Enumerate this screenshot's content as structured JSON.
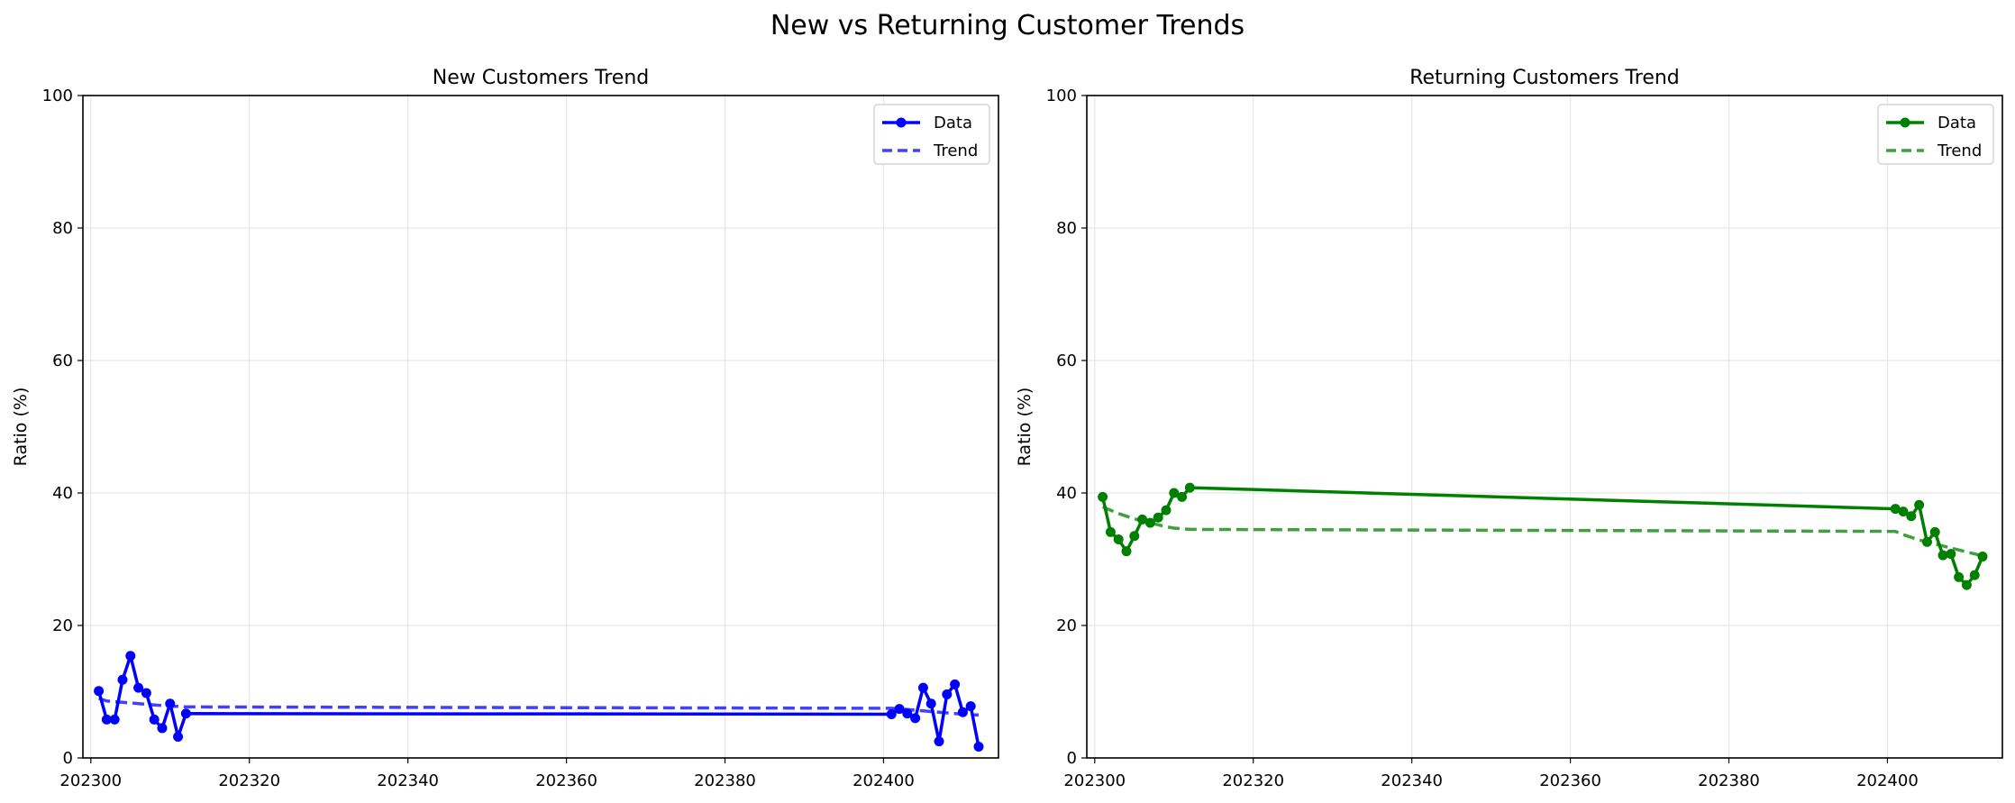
{
  "suptitle": "New vs Returning Customer Trends",
  "colors": {
    "new": "#0000ff",
    "returning": "#008000"
  },
  "chart_data": [
    {
      "type": "line",
      "title": "New Customers Trend",
      "xlabel": "",
      "ylabel": "Ratio (%)",
      "xlim": [
        202299,
        202414.5
      ],
      "ylim": [
        0,
        100
      ],
      "xticks": [
        202300,
        202320,
        202340,
        202360,
        202380,
        202400
      ],
      "yticks": [
        0,
        20,
        40,
        60,
        80,
        100
      ],
      "grid": true,
      "legend": "top-right",
      "series": [
        {
          "name": "Data",
          "style": "solid-marker",
          "color": "#0000ff",
          "x": [
            202301,
            202302,
            202303,
            202304,
            202305,
            202306,
            202307,
            202308,
            202309,
            202310,
            202311,
            202312,
            202401,
            202402,
            202403,
            202404,
            202405,
            202406,
            202407,
            202408,
            202409,
            202410,
            202411,
            202412
          ],
          "y": [
            10.1,
            5.8,
            5.8,
            11.8,
            15.4,
            10.6,
            9.8,
            5.8,
            4.5,
            8.2,
            3.2,
            6.7,
            6.6,
            7.4,
            6.7,
            6.0,
            10.6,
            8.2,
            2.5,
            9.6,
            11.1,
            6.9,
            7.8,
            1.7
          ]
        },
        {
          "name": "Trend",
          "style": "dashed",
          "color": "#0000ff",
          "x": [
            202301,
            202302,
            202303,
            202304,
            202305,
            202306,
            202307,
            202308,
            202309,
            202310,
            202311,
            202312,
            202401,
            202402,
            202403,
            202404,
            202405,
            202406,
            202407,
            202408,
            202409,
            202410,
            202411,
            202412
          ],
          "y": [
            9.0,
            8.6,
            8.5,
            8.4,
            8.3,
            8.2,
            8.1,
            8.0,
            7.9,
            7.8,
            7.8,
            7.7,
            7.5,
            7.4,
            7.3,
            7.2,
            7.1,
            7.0,
            6.9,
            6.8,
            6.7,
            6.6,
            6.5,
            6.5
          ]
        }
      ]
    },
    {
      "type": "line",
      "title": "Returning Customers Trend",
      "xlabel": "",
      "ylabel": "Ratio (%)",
      "xlim": [
        202299,
        202414.5
      ],
      "ylim": [
        0,
        100
      ],
      "xticks": [
        202300,
        202320,
        202340,
        202360,
        202380,
        202400
      ],
      "yticks": [
        0,
        20,
        40,
        60,
        80,
        100
      ],
      "grid": true,
      "legend": "top-right",
      "series": [
        {
          "name": "Data",
          "style": "solid-marker",
          "color": "#008000",
          "x": [
            202301,
            202302,
            202303,
            202304,
            202305,
            202306,
            202307,
            202308,
            202309,
            202310,
            202311,
            202312,
            202401,
            202402,
            202403,
            202404,
            202405,
            202406,
            202407,
            202408,
            202409,
            202410,
            202411,
            202412
          ],
          "y": [
            39.4,
            34.1,
            33.0,
            31.2,
            33.5,
            36.0,
            35.5,
            36.3,
            37.4,
            40.0,
            39.4,
            40.8,
            37.6,
            37.2,
            36.5,
            38.2,
            32.6,
            34.1,
            30.6,
            30.8,
            27.3,
            26.1,
            27.6,
            30.4
          ]
        },
        {
          "name": "Trend",
          "style": "dashed",
          "color": "#008000",
          "x": [
            202301,
            202302,
            202303,
            202304,
            202305,
            202306,
            202307,
            202308,
            202309,
            202310,
            202311,
            202312,
            202401,
            202402,
            202403,
            202404,
            202405,
            202406,
            202407,
            202408,
            202409,
            202410,
            202411,
            202412
          ],
          "y": [
            37.9,
            37.4,
            36.9,
            36.5,
            36.1,
            35.8,
            35.5,
            35.2,
            34.9,
            34.7,
            34.6,
            34.5,
            34.2,
            33.7,
            33.3,
            32.9,
            32.6,
            32.3,
            32.0,
            31.7,
            31.4,
            31.1,
            30.8,
            30.5
          ]
        }
      ]
    }
  ]
}
